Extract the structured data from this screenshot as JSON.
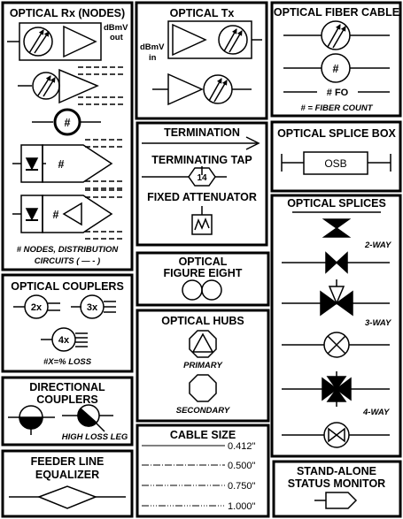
{
  "panels": {
    "optical_rx": {
      "title": "OPTICAL Rx (NODES)",
      "dbmv": "dBmV",
      "out": "out",
      "hash": "#",
      "hash2": "#",
      "note_line1": "# NODES, DISTRIBUTION",
      "note_line2": "CIRCUITS ( — - )"
    },
    "optical_tx": {
      "title": "OPTICAL Tx",
      "dbmv": "dBmV",
      "in": "in"
    },
    "optical_fiber_cable": {
      "title": "OPTICAL FIBER CABLE",
      "hash": "#",
      "fo": "# FO",
      "note": "# = FIBER COUNT"
    },
    "termination": {
      "title": "TERMINATION",
      "tap_title": "TERMINATING TAP",
      "tap_value": "14",
      "attenuator_title": "FIXED ATTENUATOR"
    },
    "optical_splice_box": {
      "title": "OPTICAL SPLICE BOX",
      "box_label": "OSB"
    },
    "optical_splices": {
      "title": "OPTICAL SPLICES",
      "two_way": "2-WAY",
      "three_way": "3-WAY",
      "four_way": "4-WAY"
    },
    "optical_couplers": {
      "title": "OPTICAL COUPLERS",
      "c1": "2x",
      "c2": "3x",
      "c3": "4x",
      "note": "#X=% LOSS"
    },
    "optical_figure_eight": {
      "title_line1": "OPTICAL",
      "title_line2": "FIGURE  EIGHT"
    },
    "optical_hubs": {
      "title": "OPTICAL HUBS",
      "primary": "PRIMARY",
      "secondary": "SECONDARY"
    },
    "directional_couplers": {
      "title_line1": "DIRECTIONAL",
      "title_line2": "COUPLERS",
      "note": "HIGH LOSS LEG"
    },
    "cable_size": {
      "title": "CABLE SIZE",
      "sizes": [
        "0.412\"",
        "0.500\"",
        "0.750\"",
        "1.000\""
      ]
    },
    "feeder_line_equalizer": {
      "title_line1": "FEEDER LINE",
      "title_line2": "EQUALIZER"
    },
    "stand_alone_status_monitor": {
      "title_line1": "STAND-ALONE",
      "title_line2": "STATUS MONITOR"
    }
  }
}
